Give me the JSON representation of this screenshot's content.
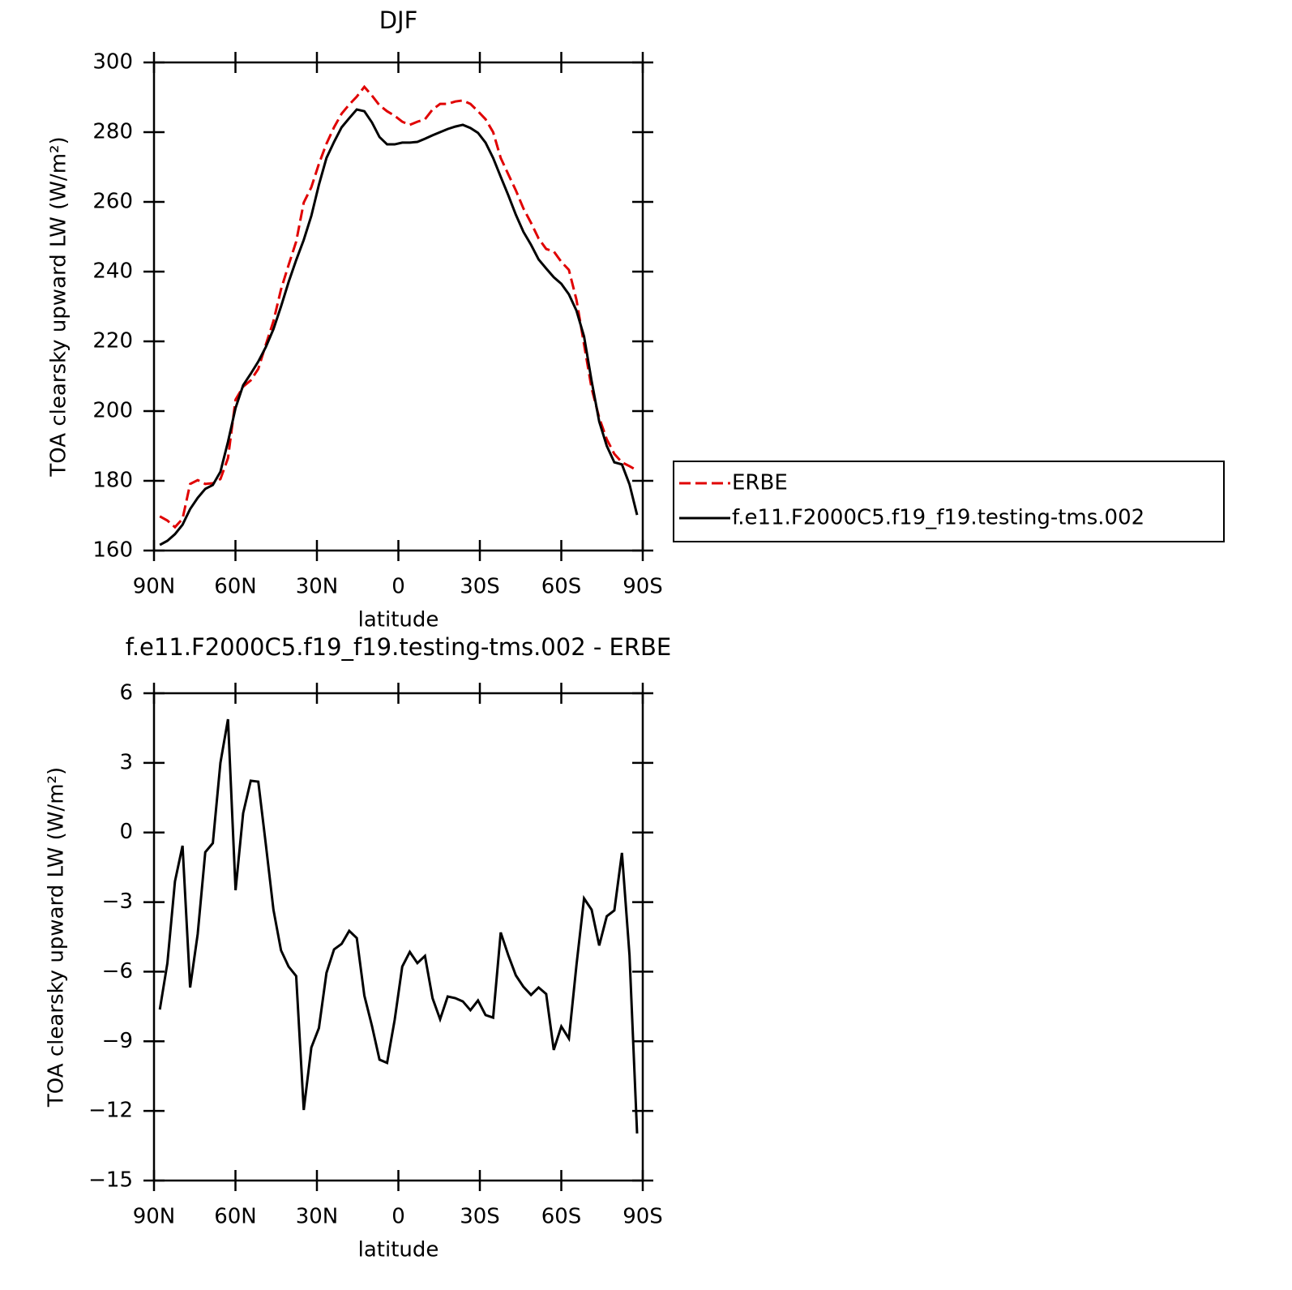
{
  "chart_data": [
    {
      "type": "line",
      "title": "DJF",
      "x_label": "latitude",
      "y_label": "TOA clearsky upward LW (W/m²)",
      "xlim": [
        90,
        -90
      ],
      "xticks": [
        {
          "value": 90,
          "label": "90N"
        },
        {
          "value": 60,
          "label": "60N"
        },
        {
          "value": 30,
          "label": "30N"
        },
        0,
        {
          "value": -30,
          "label": "30S"
        },
        {
          "value": -60,
          "label": "60S"
        },
        {
          "value": -90,
          "label": "90S"
        }
      ],
      "ylim": [
        160,
        300
      ],
      "yticks": [
        160,
        180,
        200,
        220,
        240,
        260,
        280,
        300
      ],
      "legend": "right",
      "x": [
        87.86,
        85.07,
        82.28,
        79.49,
        76.7,
        73.91,
        71.12,
        68.33,
        65.54,
        62.75,
        59.96,
        57.17,
        54.38,
        51.59,
        48.8,
        46.01,
        43.22,
        40.43,
        37.64,
        34.85,
        32.06,
        29.27,
        26.48,
        23.69,
        20.9,
        18.11,
        15.32,
        12.53,
        9.74,
        6.95,
        4.16,
        1.37,
        -1.42,
        -4.21,
        -7.0,
        -9.79,
        -12.58,
        -15.37,
        -18.16,
        -20.95,
        -23.74,
        -26.53,
        -29.32,
        -32.11,
        -34.9,
        -37.69,
        -40.48,
        -43.27,
        -46.06,
        -48.85,
        -51.64,
        -54.43,
        -57.22,
        -60.01,
        -62.8,
        -65.59,
        -68.38,
        -71.17,
        -73.96,
        -76.75,
        -79.54,
        -82.33,
        -85.12,
        -87.91
      ],
      "series": [
        {
          "name": "ERBE",
          "color": "#e00000",
          "line_style": "dashed",
          "values": [
            169.8,
            168.6,
            166.7,
            169.1,
            179.1,
            180.2,
            179.1,
            179.3,
            180.5,
            186.5,
            203.3,
            207.0,
            208.8,
            212.1,
            219.1,
            225.8,
            234.9,
            241.9,
            248.6,
            259.8,
            264.2,
            270.9,
            276.7,
            281.4,
            285.3,
            287.9,
            290.2,
            293.0,
            290.5,
            287.7,
            286.0,
            284.7,
            283.0,
            282.1,
            283.0,
            283.7,
            286.5,
            288.1,
            288.1,
            288.8,
            289.1,
            288.1,
            286.0,
            283.7,
            280.0,
            272.6,
            267.9,
            263.3,
            258.1,
            254.0,
            249.5,
            246.5,
            245.8,
            242.8,
            240.5,
            231.9,
            219.1,
            206.5,
            198.1,
            191.9,
            187.7,
            185.3,
            184.2,
            183.0
          ]
        },
        {
          "name": "f.e11.F2000C5.f19_f19.testing-tms.002",
          "color": "#000000",
          "line_style": "solid",
          "values": [
            161.6,
            162.8,
            164.7,
            167.4,
            171.9,
            175.1,
            177.7,
            178.8,
            182.6,
            191.2,
            200.9,
            207.4,
            210.7,
            214.2,
            218.4,
            223.5,
            230.0,
            237.0,
            243.3,
            249.1,
            256.0,
            264.9,
            272.6,
            277.2,
            281.4,
            284.0,
            286.5,
            286.0,
            282.8,
            278.6,
            276.5,
            276.5,
            277.0,
            277.0,
            277.2,
            278.1,
            279.1,
            280.0,
            280.9,
            281.6,
            282.1,
            281.2,
            279.8,
            277.0,
            272.6,
            267.2,
            261.9,
            256.3,
            251.4,
            247.7,
            243.5,
            240.9,
            238.4,
            236.5,
            233.5,
            228.8,
            221.4,
            208.6,
            197.0,
            190.0,
            185.3,
            184.7,
            179.0,
            170.2
          ]
        }
      ]
    },
    {
      "type": "line",
      "title": "f.e11.F2000C5.f19_f19.testing-tms.002 - ERBE",
      "x_label": "latitude",
      "y_label": "TOA clearsky upward LW (W/m²)",
      "xlim": [
        90,
        -90
      ],
      "xticks": [
        {
          "value": 90,
          "label": "90N"
        },
        {
          "value": 60,
          "label": "60N"
        },
        {
          "value": 30,
          "label": "30N"
        },
        0,
        {
          "value": -30,
          "label": "30S"
        },
        {
          "value": -60,
          "label": "60S"
        },
        {
          "value": -90,
          "label": "90S"
        }
      ],
      "ylim": [
        -15,
        6
      ],
      "yticks": [
        {
          "value": -15,
          "label": "−15"
        },
        {
          "value": -12,
          "label": "−12"
        },
        {
          "value": -9,
          "label": "−9"
        },
        {
          "value": -6,
          "label": "−6"
        },
        {
          "value": -3,
          "label": "−3"
        },
        0,
        3,
        6
      ],
      "x": [
        87.86,
        85.07,
        82.28,
        79.49,
        76.7,
        73.91,
        71.12,
        68.33,
        65.54,
        62.75,
        59.96,
        57.17,
        54.38,
        51.59,
        48.8,
        46.01,
        43.22,
        40.43,
        37.64,
        34.85,
        32.06,
        29.27,
        26.48,
        23.69,
        20.9,
        18.11,
        15.32,
        12.53,
        9.74,
        6.95,
        4.16,
        1.37,
        -1.42,
        -4.21,
        -7.0,
        -9.79,
        -12.58,
        -15.37,
        -18.16,
        -20.95,
        -23.74,
        -26.53,
        -29.32,
        -32.11,
        -34.9,
        -37.69,
        -40.48,
        -43.27,
        -46.06,
        -48.85,
        -51.64,
        -54.43,
        -57.22,
        -60.01,
        -62.8,
        -65.59,
        -68.38,
        -71.17,
        -73.96,
        -76.75,
        -79.54,
        -82.33,
        -85.12,
        -87.91
      ],
      "series": [
        {
          "color": "#000000",
          "line_style": "solid",
          "values": [
            -7.63,
            -5.63,
            -2.11,
            -0.57,
            -6.68,
            -4.38,
            -0.85,
            -0.46,
            3.0,
            4.88,
            -2.49,
            0.83,
            2.23,
            2.19,
            -0.53,
            -3.33,
            -5.08,
            -5.78,
            -6.19,
            -11.96,
            -9.27,
            -8.43,
            -6.05,
            -5.04,
            -4.8,
            -4.24,
            -4.55,
            -7.03,
            -8.33,
            -9.79,
            -9.93,
            -8.08,
            -5.78,
            -5.15,
            -5.63,
            -5.32,
            -7.14,
            -8.05,
            -7.07,
            -7.14,
            -7.28,
            -7.66,
            -7.24,
            -7.87,
            -7.98,
            -4.31,
            -5.29,
            -6.16,
            -6.65,
            -7.0,
            -6.68,
            -6.96,
            -9.37,
            -8.36,
            -8.88,
            -5.71,
            -2.84,
            -3.33,
            -4.87,
            -3.61,
            -3.36,
            -0.88,
            -5.29,
            -12.97
          ]
        }
      ]
    }
  ]
}
